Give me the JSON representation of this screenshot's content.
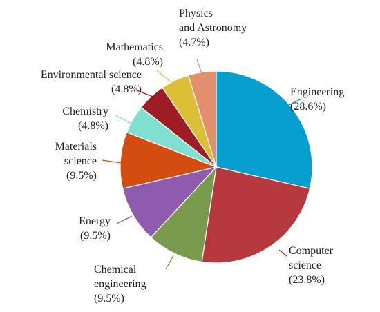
{
  "chart_data": {
    "type": "pie",
    "title": "",
    "start_angle_deg": 0,
    "direction": "clockwise",
    "slices": [
      {
        "label_lines": [
          "Engineering"
        ],
        "pct_text": "(28.6%)",
        "value": 28.6,
        "color": "#069FCF"
      },
      {
        "label_lines": [
          "Computer",
          "science"
        ],
        "pct_text": "(23.8%)",
        "value": 23.8,
        "color": "#B7393F"
      },
      {
        "label_lines": [
          "Chemical",
          "engineering"
        ],
        "pct_text": "(9.5%)",
        "value": 9.5,
        "color": "#7A9A4E"
      },
      {
        "label_lines": [
          "Energy"
        ],
        "pct_text": "(9.5%)",
        "value": 9.5,
        "color": "#8F5BAE"
      },
      {
        "label_lines": [
          "Materials",
          "science"
        ],
        "pct_text": "(9.5%)",
        "value": 9.5,
        "color": "#D34C10"
      },
      {
        "label_lines": [
          "Chemistry"
        ],
        "pct_text": "(4.8%)",
        "value": 4.8,
        "color": "#7FE0D0"
      },
      {
        "label_lines": [
          "Environmental science"
        ],
        "pct_text": "(4.8%)",
        "value": 4.8,
        "color": "#9E1D25"
      },
      {
        "label_lines": [
          "Mathematics"
        ],
        "pct_text": "(4.8%)",
        "value": 4.8,
        "color": "#DDBF37"
      },
      {
        "label_lines": [
          "Physics",
          "and Astronomy"
        ],
        "pct_text": "(4.7%)",
        "value": 4.7,
        "color": "#E38F6C"
      }
    ]
  }
}
